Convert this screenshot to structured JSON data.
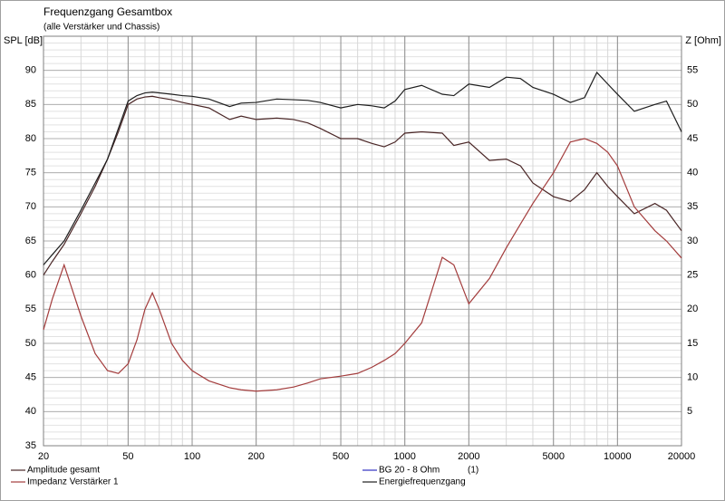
{
  "chart_data": {
    "type": "line",
    "title": "Frequenzgang Gesamtbox",
    "subtitle": "(alle Verstärker und Chassis)",
    "y_label": "SPL [dB]",
    "y2_label": "Z [Ohm]",
    "x": [
      20,
      22,
      25,
      30,
      35,
      40,
      45,
      50,
      55,
      60,
      65,
      70,
      80,
      90,
      100,
      120,
      150,
      170,
      200,
      250,
      300,
      350,
      400,
      500,
      600,
      700,
      800,
      900,
      1000,
      1200,
      1500,
      1700,
      2000,
      2500,
      3000,
      3500,
      4000,
      5000,
      6000,
      7000,
      8000,
      9000,
      10000,
      12000,
      15000,
      17000,
      20000
    ],
    "xlog": true,
    "xlim": [
      20,
      20000
    ],
    "xticks": [
      20,
      50,
      100,
      200,
      500,
      1000,
      2000,
      5000,
      10000,
      20000
    ],
    "ylim": [
      35,
      95
    ],
    "yticks": [
      35,
      40,
      45,
      50,
      55,
      60,
      65,
      70,
      75,
      80,
      85,
      90
    ],
    "yminor": 1,
    "y2lim": [
      0,
      60
    ],
    "y2ticks": [
      5,
      10,
      15,
      20,
      25,
      30,
      35,
      40,
      45,
      50,
      55
    ],
    "grid": true,
    "series": [
      {
        "name": "Amplitude gesamt",
        "color": "#4a2626",
        "values": [
          60,
          62,
          64.5,
          69,
          73,
          77,
          81,
          85,
          85.8,
          86.1,
          86.2,
          86,
          85.7,
          85.3,
          85,
          84.5,
          82.8,
          83.3,
          82.8,
          83,
          82.8,
          82.3,
          81.5,
          80,
          80,
          79.3,
          78.8,
          79.5,
          80.8,
          81,
          80.8,
          79,
          79.5,
          76.8,
          77,
          76,
          73.5,
          71.5,
          70.8,
          72.5,
          75,
          73,
          71.5,
          69,
          70.5,
          69.5,
          66.5
        ]
      },
      {
        "name": "Impedanz Verstärker 1",
        "color": "#a33c3c",
        "axis": "y2",
        "values": [
          17,
          21.5,
          26.5,
          19,
          13.5,
          11,
          10.6,
          12,
          15.5,
          20,
          22.4,
          20,
          15,
          12.5,
          11,
          9.5,
          8.5,
          8.2,
          8,
          8.2,
          8.6,
          9.2,
          9.8,
          10.2,
          10.6,
          11.5,
          12.5,
          13.5,
          15,
          18,
          27.6,
          26.5,
          20.8,
          24.5,
          29,
          32.5,
          35.5,
          40,
          44.5,
          45,
          44.3,
          43,
          41,
          35,
          31.5,
          30,
          27.5
        ]
      },
      {
        "name": "Energiefrequenzgang",
        "color": "#1e1e1e",
        "values": [
          61.5,
          63,
          65,
          69.5,
          73.5,
          77,
          81.5,
          85.5,
          86.3,
          86.7,
          86.8,
          86.7,
          86.5,
          86.3,
          86.2,
          85.8,
          84.7,
          85.2,
          85.3,
          85.8,
          85.7,
          85.6,
          85.3,
          84.5,
          85,
          84.8,
          84.5,
          85.5,
          87.2,
          87.8,
          86.5,
          86.3,
          88,
          87.5,
          89,
          88.8,
          87.5,
          86.5,
          85.3,
          86,
          89.7,
          88,
          86.5,
          84,
          85,
          85.5,
          81
        ]
      }
    ],
    "legend_extra": [
      {
        "name": "BG 20 - 8 Ohm",
        "color": "#3030c0",
        "tag": "(1)"
      }
    ]
  }
}
